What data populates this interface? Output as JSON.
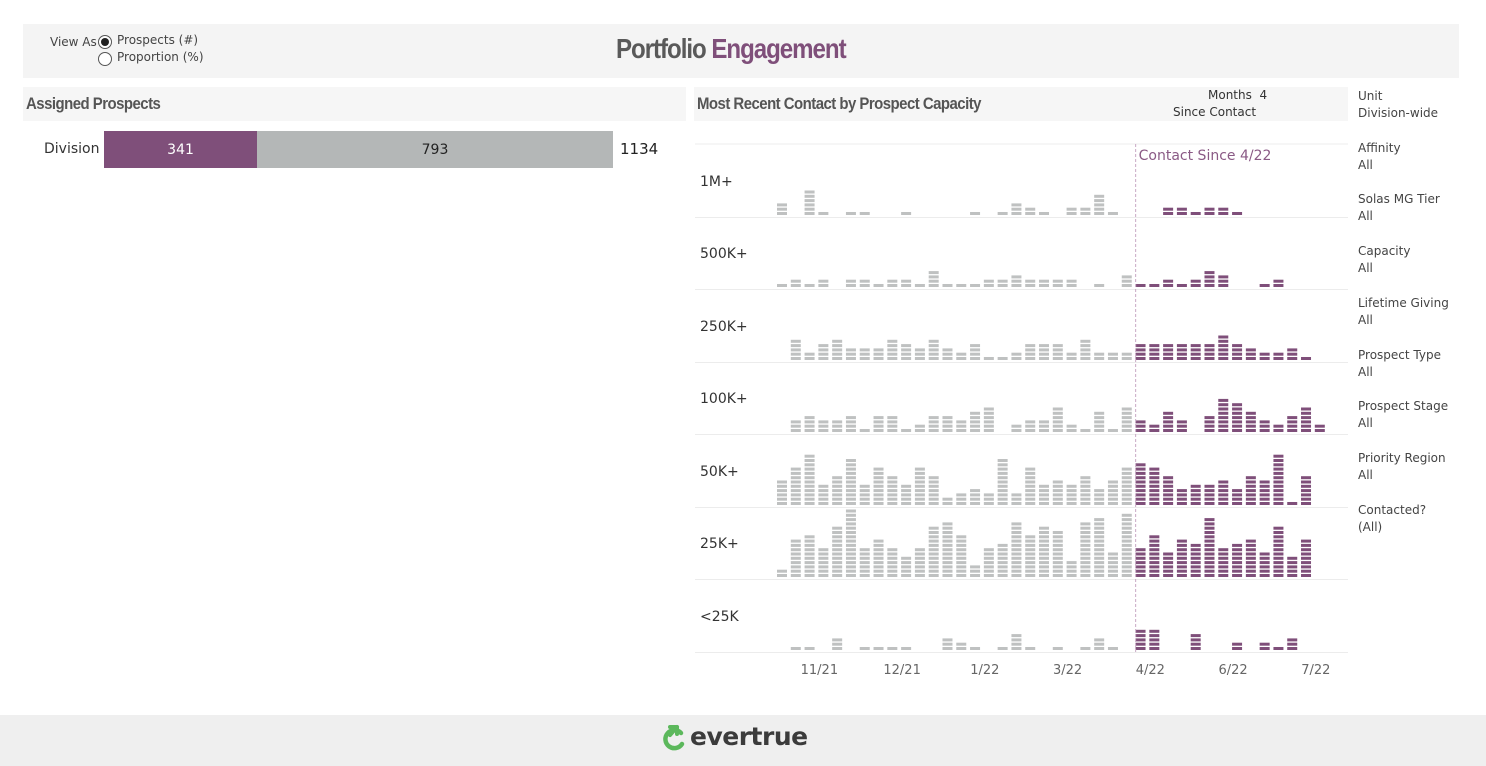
{
  "header": {
    "view_as_label": "View As",
    "view_options": [
      {
        "label": "Prospects (#)",
        "selected": true
      },
      {
        "label": "Proportion (%)",
        "selected": false
      }
    ],
    "title_part1": "Portfolio",
    "title_part2": "Engagement"
  },
  "assigned_prospects": {
    "title": "Assigned Prospects",
    "row_label": "Division",
    "contacted": 341,
    "not_contacted": 793,
    "total": 1134
  },
  "recent_contact": {
    "title": "Most Recent Contact by Prospect Capacity",
    "months_label": "Months",
    "months_value": "4",
    "since_contact_label": "Since Contact",
    "annotation": "Contact Since 4/22"
  },
  "filters": [
    {
      "label": "Unit",
      "value": "Division-wide"
    },
    {
      "label": "Affinity",
      "value": "All"
    },
    {
      "label": "Solas MG Tier",
      "value": "All"
    },
    {
      "label": "Capacity",
      "value": "All"
    },
    {
      "label": "Lifetime Giving",
      "value": "All"
    },
    {
      "label": "Prospect Type",
      "value": "All"
    },
    {
      "label": "Prospect Stage",
      "value": "All"
    },
    {
      "label": "Priority Region",
      "value": "All"
    },
    {
      "label": "Contacted?",
      "value": "(All)"
    }
  ],
  "colors": {
    "contacted": "#7f4f7a",
    "not_contacted": "#b4b7b7",
    "block_gray": "#bfc1c1",
    "accent_green": "#5cb85c"
  },
  "footer": {
    "logo": "evertrue"
  },
  "chart_data": {
    "type": "bar",
    "stacked_unit_blocks": true,
    "contacted_from_index": 26,
    "x_ticks": [
      {
        "label": "11/21",
        "index": 3
      },
      {
        "label": "12/21",
        "index": 9
      },
      {
        "label": "1/22",
        "index": 15
      },
      {
        "label": "3/22",
        "index": 21
      },
      {
        "label": "4/22",
        "index": 27
      },
      {
        "label": "6/22",
        "index": 33
      },
      {
        "label": "7/22",
        "index": 39
      }
    ],
    "series": [
      {
        "name": "1M+",
        "values": [
          3,
          0,
          6,
          1,
          0,
          1,
          1,
          0,
          0,
          1,
          0,
          0,
          0,
          0,
          1,
          0,
          1,
          3,
          2,
          1,
          0,
          2,
          2,
          5,
          1,
          0,
          0,
          0,
          2,
          2,
          1,
          2,
          2,
          1,
          0,
          0,
          0,
          0,
          0,
          0
        ]
      },
      {
        "name": "500K+",
        "values": [
          1,
          2,
          1,
          2,
          0,
          2,
          2,
          1,
          2,
          2,
          1,
          4,
          1,
          1,
          1,
          2,
          2,
          3,
          2,
          2,
          2,
          2,
          0,
          1,
          0,
          3,
          1,
          1,
          2,
          1,
          2,
          4,
          3,
          0,
          0,
          1,
          2,
          0,
          0,
          0
        ]
      },
      {
        "name": "250K+",
        "values": [
          0,
          5,
          2,
          4,
          5,
          3,
          3,
          3,
          5,
          4,
          3,
          5,
          3,
          2,
          4,
          1,
          1,
          2,
          4,
          4,
          4,
          2,
          5,
          2,
          2,
          2,
          4,
          4,
          4,
          4,
          4,
          4,
          6,
          4,
          3,
          2,
          2,
          3,
          1,
          0
        ]
      },
      {
        "name": "100K+",
        "values": [
          0,
          3,
          4,
          3,
          3,
          4,
          1,
          4,
          4,
          1,
          2,
          4,
          4,
          3,
          5,
          6,
          0,
          2,
          3,
          3,
          6,
          2,
          1,
          5,
          1,
          6,
          3,
          2,
          5,
          3,
          0,
          4,
          8,
          7,
          5,
          3,
          2,
          4,
          6,
          2
        ]
      },
      {
        "name": "50K+",
        "values": [
          6,
          9,
          12,
          5,
          7,
          11,
          5,
          9,
          7,
          5,
          9,
          7,
          2,
          3,
          4,
          3,
          11,
          3,
          9,
          5,
          6,
          5,
          7,
          4,
          6,
          9,
          10,
          9,
          7,
          4,
          5,
          5,
          6,
          4,
          7,
          6,
          12,
          1,
          7,
          0
        ]
      },
      {
        "name": "25K+",
        "values": [
          2,
          9,
          10,
          7,
          12,
          16,
          7,
          9,
          7,
          5,
          7,
          12,
          13,
          10,
          3,
          7,
          8,
          13,
          10,
          12,
          11,
          4,
          13,
          14,
          6,
          15,
          7,
          10,
          6,
          9,
          8,
          14,
          7,
          8,
          9,
          6,
          12,
          5,
          9,
          0
        ]
      },
      {
        "name": "<25K",
        "values": [
          0,
          1,
          1,
          0,
          3,
          0,
          1,
          1,
          1,
          1,
          0,
          0,
          3,
          2,
          1,
          0,
          1,
          4,
          1,
          0,
          1,
          0,
          1,
          3,
          1,
          0,
          5,
          5,
          0,
          0,
          4,
          0,
          0,
          2,
          0,
          2,
          1,
          3,
          0,
          0
        ]
      }
    ]
  }
}
